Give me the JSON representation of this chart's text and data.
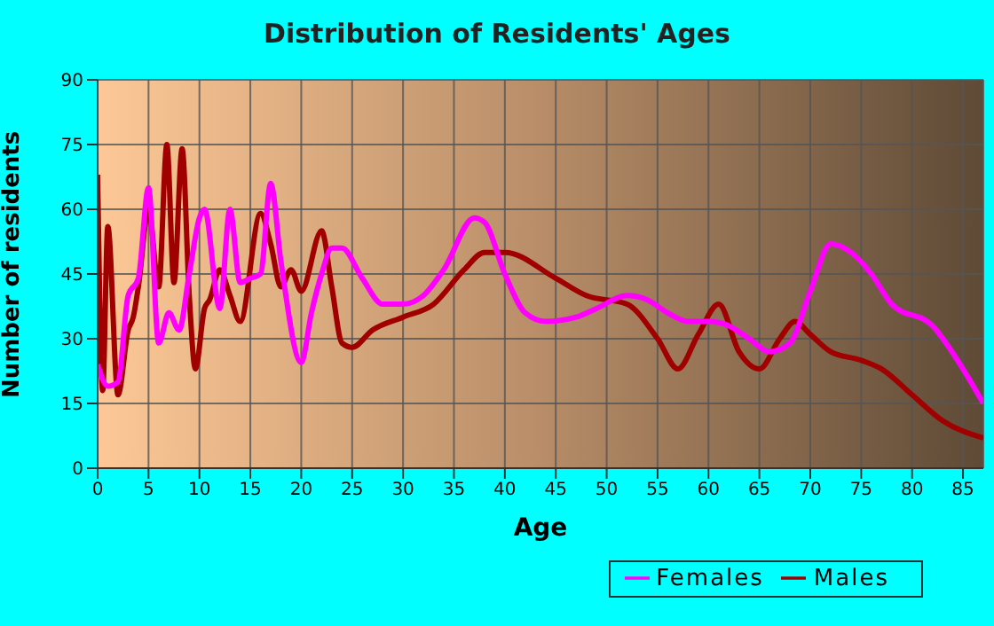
{
  "chart_data": {
    "type": "line",
    "title": "Distribution of Residents' Ages",
    "xlabel": "Age",
    "ylabel": "Number of residents",
    "xlim": [
      0,
      87
    ],
    "xticks": [
      0,
      5,
      10,
      15,
      20,
      25,
      30,
      35,
      40,
      45,
      50,
      55,
      60,
      65,
      70,
      75,
      80,
      85
    ],
    "ylim": [
      0,
      90
    ],
    "yticks": [
      0,
      15,
      30,
      45,
      60,
      75,
      90
    ],
    "grid": true,
    "legend": "bottom right",
    "series": [
      {
        "name": "Males",
        "color": "#a00000",
        "x": [
          0,
          0.5,
          1,
          2,
          3,
          3.5,
          4,
          5,
          6,
          6.8,
          7.5,
          8.3,
          9,
          9.6,
          10.5,
          11,
          12,
          13,
          14,
          16,
          17,
          18,
          19,
          20,
          22,
          23,
          24,
          25,
          27,
          30,
          33,
          36,
          38,
          40,
          45,
          48,
          52,
          55,
          57,
          59,
          61,
          63,
          65,
          67,
          68.5,
          70,
          72,
          75,
          77,
          80,
          83,
          87
        ],
        "values": [
          68,
          18,
          56,
          17,
          32,
          35,
          42,
          60,
          42,
          75,
          43,
          74,
          40,
          23,
          37,
          39,
          46,
          40,
          34,
          59,
          52,
          42,
          46,
          41,
          55,
          42,
          29,
          28,
          32,
          35,
          38,
          46,
          50,
          50,
          44,
          40,
          38,
          30,
          23,
          31,
          38,
          27,
          23,
          30,
          34,
          31,
          27,
          25,
          23,
          17,
          11,
          7
        ]
      },
      {
        "name": "Females",
        "color": "#ff00ff",
        "x": [
          0,
          1,
          2,
          3,
          4,
          5,
          6,
          7,
          8,
          9,
          10,
          10.5,
          12,
          13,
          14,
          15,
          16,
          17,
          18,
          20,
          21,
          22,
          23,
          24,
          26,
          28,
          30,
          32,
          34,
          37,
          38,
          40,
          42,
          44,
          47,
          49,
          52,
          54,
          56,
          58,
          60,
          62,
          64,
          66,
          68,
          70,
          72,
          74,
          76,
          78,
          82,
          85,
          87
        ],
        "values": [
          24,
          19,
          20,
          40,
          44,
          65,
          29,
          36,
          32,
          45,
          58,
          60,
          37,
          60,
          43,
          44,
          45,
          66,
          48,
          24.5,
          36,
          45,
          51,
          51,
          44,
          38,
          38,
          40,
          46,
          58,
          57,
          45,
          36,
          34,
          35,
          37,
          40,
          39,
          36,
          34,
          34,
          33,
          30,
          27,
          29,
          41,
          52,
          50,
          45,
          38,
          33,
          23,
          15
        ]
      }
    ]
  }
}
